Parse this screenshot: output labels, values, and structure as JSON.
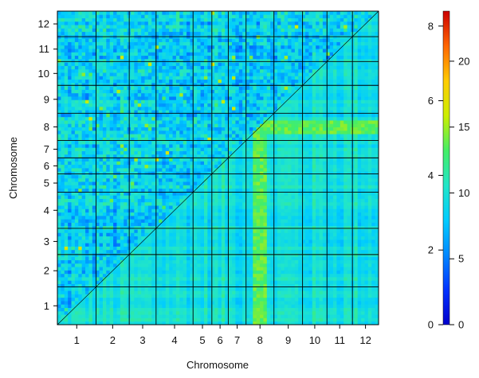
{
  "chart_data": {
    "type": "heatmap",
    "xlabel": "Chromosome",
    "ylabel": "Chromosome",
    "chromosomes": [
      "1",
      "2",
      "3",
      "4",
      "5",
      "6",
      "7",
      "8",
      "9",
      "10",
      "11",
      "12"
    ],
    "chromosome_boundaries": [
      0,
      11.1,
      20.6,
      28.3,
      38.9,
      44.3,
      49.0,
      54.1,
      62.1,
      70.3,
      77.3,
      84.6,
      92.1
    ],
    "lower_triangle": {
      "scale_min": 0,
      "scale_max": 23.8,
      "highlight_chromosome": "8"
    },
    "upper_triangle": {
      "scale_min": 0,
      "scale_max": 8.4
    },
    "colorbar_left": {
      "ticks": [
        0,
        2,
        4,
        6,
        8
      ],
      "tick_labels": [
        "0",
        "2",
        "4",
        "6",
        "8"
      ]
    },
    "colorbar_right": {
      "ticks": [
        0,
        5,
        10,
        15,
        20
      ],
      "tick_labels": [
        "0",
        "5",
        "10",
        "15",
        "20"
      ]
    },
    "colors": [
      "#0000cc",
      "#0033ff",
      "#0088ff",
      "#00ccff",
      "#22e6c8",
      "#44ee66",
      "#ccee00",
      "#ffcc00",
      "#ff6600",
      "#cc0000"
    ]
  }
}
